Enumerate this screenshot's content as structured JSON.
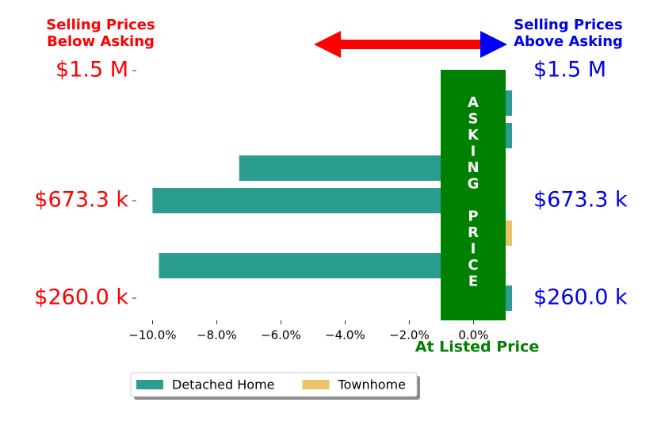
{
  "chart_data": {
    "type": "barh",
    "left_header": [
      "Selling Prices",
      "Below Asking"
    ],
    "right_header": [
      "Selling Prices",
      "Above Asking"
    ],
    "box_text": "ASKING PRICE",
    "x_annotation": "At Listed Price",
    "categories": [
      "$1.5 M",
      null,
      null,
      null,
      "$673.3 k",
      null,
      null,
      "$260.0 k"
    ],
    "series": [
      {
        "name": "Detached Home",
        "color": "#2a9d8f",
        "values": [
          null,
          1.2,
          1.2,
          -7.3,
          -10.0,
          null,
          -9.8,
          1.2
        ]
      },
      {
        "name": "Townhome",
        "color": "#e9c46a",
        "values": [
          null,
          null,
          null,
          null,
          null,
          1.2,
          null,
          null
        ]
      }
    ],
    "xlim": [
      -10.8,
      1.2
    ],
    "xticks": [
      {
        "value": -10,
        "label": "−10.0%"
      },
      {
        "value": -8,
        "label": "−8.0%"
      },
      {
        "value": -6,
        "label": "−6.0%"
      },
      {
        "value": -4,
        "label": "−4.0%"
      },
      {
        "value": -2,
        "label": "−2.0%"
      },
      {
        "value": 0,
        "label": "0.0%"
      }
    ],
    "left_label_color": "#ff0000",
    "right_label_color": "#0000ee",
    "box_color": "#008000"
  }
}
